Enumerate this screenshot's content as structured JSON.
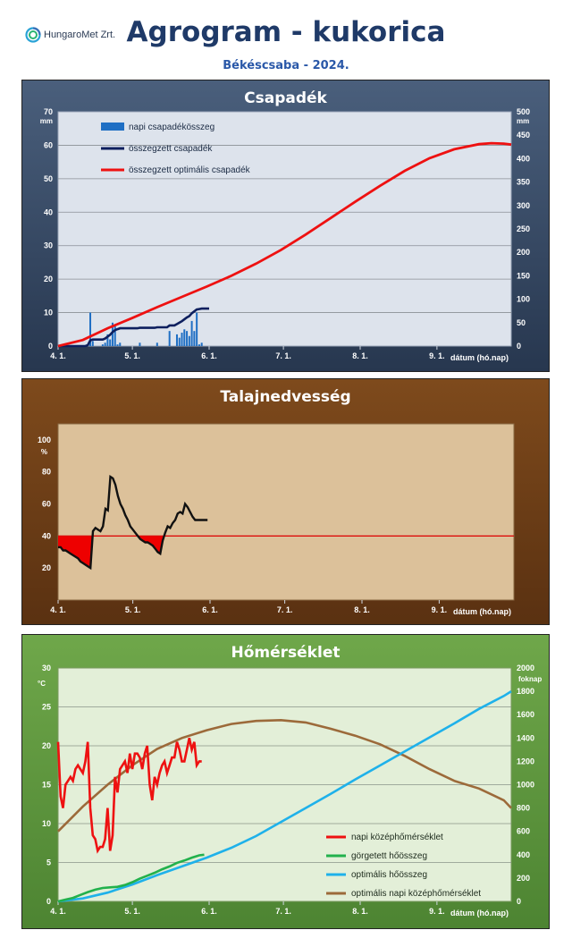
{
  "header": {
    "logo_text": "HungaroMet Zrt.",
    "title": "Agrogram - kukorica",
    "subtitle": "Békéscsaba - 2024."
  },
  "chart_data": [
    {
      "type": "bar+line",
      "title": "Csapadék",
      "xlabel": "dátum (hó.nap)",
      "x_ticks": [
        "4. 1.",
        "5. 1.",
        "6. 1.",
        "7. 1.",
        "8. 1.",
        "9. 1."
      ],
      "x_range_days": [
        0,
        183
      ],
      "ylabel_left": "mm",
      "ylim_left": [
        0,
        70
      ],
      "yticks_left": [
        0,
        10,
        20,
        30,
        40,
        50,
        60,
        70
      ],
      "ylabel_right": "mm",
      "ylim_right": [
        0,
        500
      ],
      "yticks_right": [
        0,
        50,
        100,
        150,
        200,
        250,
        300,
        350,
        400,
        450,
        500
      ],
      "grid": true,
      "legend_position": "top-left",
      "series": [
        {
          "name": "napi csapadékösszeg",
          "kind": "bar",
          "axis": "left",
          "color": "#1f6fc4",
          "x": [
            12,
            13,
            14,
            18,
            19,
            20,
            21,
            22,
            23,
            24,
            25,
            33,
            40,
            45,
            48,
            49,
            50,
            51,
            52,
            53,
            54,
            55,
            56,
            57,
            58
          ],
          "values": [
            0.5,
            10,
            1.5,
            0.5,
            1,
            3.5,
            2,
            7,
            6,
            0.5,
            1,
            1,
            1,
            4.5,
            3.5,
            2.5,
            4,
            5,
            4.5,
            3,
            7.5,
            4.5,
            10,
            0.5,
            1
          ]
        },
        {
          "name": "összegzett csapadék",
          "kind": "line",
          "axis": "right",
          "color": "#0d1f5e",
          "x": [
            0,
            11,
            12,
            13,
            14,
            18,
            19,
            20,
            21,
            22,
            23,
            24,
            25,
            32,
            33,
            39,
            40,
            44,
            45,
            47,
            48,
            49,
            50,
            51,
            52,
            53,
            54,
            55,
            56,
            57,
            58,
            61
          ],
          "values": [
            0,
            0,
            2,
            12,
            14,
            14,
            16,
            20,
            24,
            30,
            34,
            36,
            38,
            38,
            39,
            39,
            40,
            40,
            44,
            44,
            47,
            50,
            53,
            57,
            61,
            64,
            70,
            74,
            78,
            79,
            80,
            80
          ]
        },
        {
          "name": "összegzett optimális csapadék",
          "kind": "line",
          "axis": "right",
          "color": "#ee1111",
          "x": [
            0,
            10,
            20,
            30,
            40,
            50,
            60,
            70,
            80,
            90,
            100,
            110,
            120,
            130,
            140,
            150,
            160,
            170,
            175,
            180,
            183
          ],
          "values": [
            0,
            13,
            38,
            60,
            83,
            105,
            127,
            150,
            176,
            205,
            238,
            273,
            308,
            342,
            374,
            401,
            420,
            431,
            433,
            432,
            430
          ]
        }
      ]
    },
    {
      "type": "line",
      "title": "Talajnedvesség",
      "xlabel": "dátum (hó.nap)",
      "x_ticks": [
        "4. 1.",
        "5. 1.",
        "6. 1.",
        "7. 1.",
        "8. 1.",
        "9. 1."
      ],
      "x_range_days": [
        0,
        183
      ],
      "ylabel": "%",
      "ylim": [
        0,
        110
      ],
      "yticks": [
        20,
        40,
        60,
        80,
        100
      ],
      "grid": false,
      "threshold": 40,
      "threshold_color": "#dd0000",
      "fill_below_threshold_color": "#ee0000",
      "series": [
        {
          "name": "talajnedvesség",
          "color": "#111111",
          "x": [
            0,
            1,
            2,
            3,
            4,
            5,
            6,
            7,
            8,
            9,
            10,
            11,
            12,
            13,
            14,
            15,
            16,
            17,
            18,
            19,
            20,
            21,
            22,
            23,
            24,
            25,
            26,
            27,
            28,
            29,
            30,
            31,
            32,
            33,
            34,
            35,
            36,
            37,
            38,
            39,
            40,
            41,
            42,
            43,
            44,
            45,
            46,
            47,
            48,
            49,
            50,
            51,
            52,
            53,
            54,
            55,
            56,
            57,
            58,
            59,
            60
          ],
          "values": [
            33,
            33,
            31,
            31,
            30,
            29,
            28,
            27,
            26,
            24,
            23,
            22,
            21,
            20,
            43,
            45,
            44,
            43,
            46,
            57,
            56,
            77,
            76,
            72,
            65,
            60,
            57,
            53,
            50,
            46,
            44,
            42,
            40,
            38,
            37,
            36,
            36,
            35,
            34,
            32,
            30,
            29,
            37,
            42,
            46,
            45,
            48,
            50,
            54,
            55,
            54,
            60,
            58,
            55,
            52,
            50,
            50,
            50,
            50,
            50,
            50
          ]
        }
      ]
    },
    {
      "type": "line",
      "title": "Hőmérséklet",
      "xlabel": "dátum (hó.nap)",
      "x_ticks": [
        "4. 1.",
        "5. 1.",
        "6. 1.",
        "7. 1.",
        "8. 1.",
        "9. 1."
      ],
      "x_range_days": [
        0,
        183
      ],
      "ylabel_left": "°C",
      "ylim_left": [
        0,
        30
      ],
      "yticks_left": [
        0,
        5,
        10,
        15,
        20,
        25,
        30
      ],
      "ylabel_right": "foknap",
      "ylim_right": [
        0,
        2000
      ],
      "yticks_right": [
        0,
        200,
        400,
        600,
        800,
        1000,
        1200,
        1400,
        1600,
        1800,
        2000
      ],
      "grid": true,
      "legend_position": "bottom-right",
      "series": [
        {
          "name": "napi középhőmérséklet",
          "axis": "left",
          "color": "#ee1111",
          "x": [
            0,
            1,
            2,
            3,
            4,
            5,
            6,
            7,
            8,
            9,
            10,
            11,
            12,
            13,
            14,
            15,
            16,
            17,
            18,
            19,
            20,
            21,
            22,
            23,
            24,
            25,
            26,
            27,
            28,
            29,
            30,
            31,
            32,
            33,
            34,
            35,
            36,
            37,
            38,
            39,
            40,
            41,
            42,
            43,
            44,
            45,
            46,
            47,
            48,
            49,
            50,
            51,
            52,
            53,
            54,
            55,
            56,
            57,
            58
          ],
          "values": [
            20.5,
            13.5,
            12,
            15,
            15.5,
            16,
            15.5,
            17,
            17.5,
            17,
            16.5,
            18,
            20.5,
            12,
            8.5,
            8,
            6.5,
            7,
            7,
            8,
            12,
            6.5,
            8.5,
            16,
            14,
            17,
            17.5,
            18,
            16.5,
            19,
            17,
            19,
            19,
            18.5,
            17,
            19,
            20,
            15,
            13,
            16,
            15,
            16.5,
            17.5,
            18,
            16.5,
            17.5,
            18.5,
            18.5,
            20.5,
            19.5,
            18,
            18,
            19.5,
            21,
            19.5,
            20.5,
            17.5,
            18,
            18
          ]
        },
        {
          "name": "görgetett hőösszeg",
          "axis": "right",
          "color": "#22b14c",
          "x": [
            0,
            3,
            6,
            9,
            12,
            15,
            18,
            21,
            24,
            27,
            30,
            33,
            36,
            39,
            42,
            45,
            48,
            51,
            54,
            57,
            59
          ],
          "values": [
            0,
            15,
            30,
            55,
            80,
            100,
            115,
            120,
            125,
            140,
            165,
            195,
            220,
            245,
            275,
            300,
            330,
            350,
            375,
            395,
            400
          ]
        },
        {
          "name": "optimális hőösszeg",
          "axis": "right",
          "color": "#1fb1ea",
          "x": [
            0,
            10,
            20,
            30,
            40,
            50,
            60,
            70,
            80,
            90,
            100,
            110,
            120,
            130,
            140,
            150,
            160,
            170,
            180,
            183
          ],
          "values": [
            0,
            25,
            75,
            145,
            225,
            300,
            375,
            460,
            560,
            680,
            800,
            920,
            1045,
            1165,
            1285,
            1405,
            1525,
            1650,
            1760,
            1800
          ]
        },
        {
          "name": "optimális napi középhőmérséklet",
          "axis": "left",
          "color": "#9c6a3a",
          "x": [
            0,
            10,
            20,
            30,
            40,
            50,
            60,
            70,
            80,
            90,
            100,
            110,
            120,
            130,
            140,
            150,
            160,
            170,
            180,
            183
          ],
          "values": [
            9,
            12.2,
            15,
            17.5,
            19.6,
            21,
            22,
            22.8,
            23.2,
            23.3,
            23,
            22.2,
            21.3,
            20.2,
            18.7,
            17,
            15.5,
            14.5,
            13,
            12
          ]
        }
      ]
    }
  ]
}
